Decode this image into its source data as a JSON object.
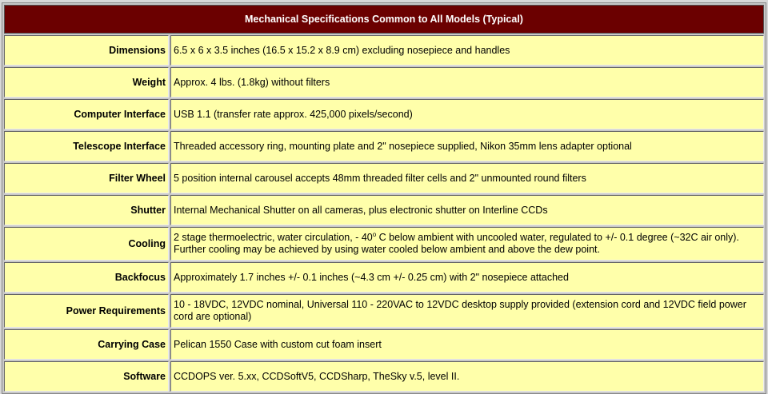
{
  "title": "Mechanical Specifications Common to All Models (Typical)",
  "rows": [
    {
      "label": "Dimensions",
      "value": "6.5 x 6 x 3.5 inches (16.5 x 15.2 x 8.9 cm) excluding nosepiece and handles"
    },
    {
      "label": "Weight",
      "value": "Approx. 4 lbs. (1.8kg) without filters"
    },
    {
      "label": "Computer Interface",
      "value": "USB 1.1 (transfer rate approx. 425,000 pixels/second)"
    },
    {
      "label": "Telescope Interface",
      "value": "Threaded accessory ring, mounting plate and 2\" nosepiece supplied, Nikon 35mm lens adapter optional"
    },
    {
      "label": "Filter Wheel",
      "value": "5 position internal carousel accepts 48mm threaded filter cells and 2\" unmounted round filters"
    },
    {
      "label": "Shutter",
      "value": "Internal Mechanical Shutter on all cameras, plus electronic shutter on Interline CCDs"
    },
    {
      "label": "Cooling",
      "value_pre": "2 stage thermoelectric, water circulation, - 40",
      "value_sup": "o",
      "value_post": " C below ambient with uncooled water, regulated to +/- 0.1 degree (~32C air only).  Further cooling may be achieved by using water cooled below ambient and above the dew point."
    },
    {
      "label": "Backfocus",
      "value": "Approximately 1.7 inches +/- 0.1 inches (~4.3 cm +/- 0.25 cm) with 2\" nosepiece attached"
    },
    {
      "label": "Power Requirements",
      "value": "10 - 18VDC, 12VDC nominal, Universal 110 - 220VAC to 12VDC desktop supply provided (extension cord and 12VDC field power cord are optional)"
    },
    {
      "label": "Carrying Case",
      "value": "Pelican 1550 Case with custom cut foam insert"
    },
    {
      "label": "Software",
      "value": "CCDOPS ver. 5.xx, CCDSoftV5, CCDSharp, TheSky v.5, level II."
    }
  ]
}
